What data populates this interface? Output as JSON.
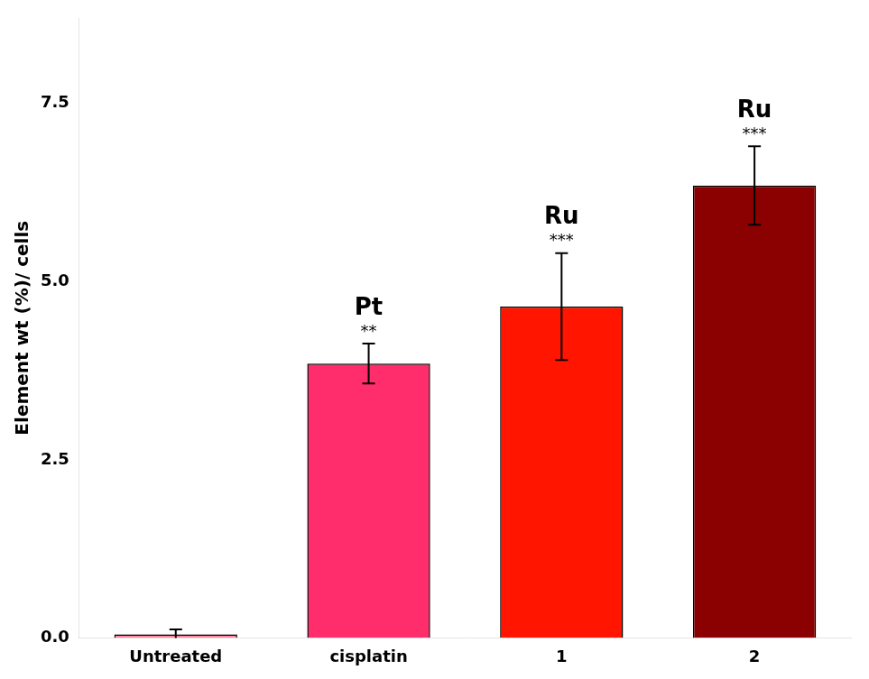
{
  "chart_data": {
    "type": "bar",
    "categories": [
      "Untreated",
      "cisplatin",
      "1",
      "2"
    ],
    "values": [
      0.05,
      3.85,
      4.65,
      6.35
    ],
    "errors": [
      0.07,
      0.28,
      0.75,
      0.55
    ],
    "colors": [
      "#FF85A1",
      "#FF2D6B",
      "#FF1500",
      "#8B0000"
    ],
    "y_label": "Element wt (%)/ cells",
    "ylim": [
      0,
      8.7
    ],
    "yticks": [
      {
        "value": 0.0,
        "label": "0.0"
      },
      2.5,
      {
        "value": 5.0,
        "label": "5.0"
      },
      7.5
    ],
    "annotations": [
      {
        "x": "cisplatin",
        "label": "Pt",
        "stars": "**"
      },
      {
        "x": "1",
        "label": "Ru",
        "stars": "***"
      },
      {
        "x": "2",
        "label": "Ru",
        "stars": "***"
      }
    ],
    "grid": false
  }
}
